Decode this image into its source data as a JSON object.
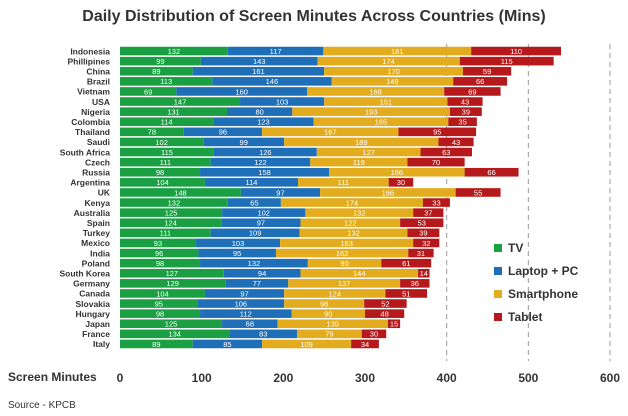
{
  "chart_data": {
    "type": "bar",
    "orientation": "horizontal",
    "stacked": true,
    "title": "Daily Distribution of Screen Minutes Across Countries (Mins)",
    "xlabel": "Screen Minutes",
    "xlim": [
      0,
      600
    ],
    "xticks": [
      "0",
      "100",
      "200",
      "300",
      "400",
      "500",
      "600"
    ],
    "grid_lines_dashed_at": [
      400,
      500,
      600
    ],
    "legend_position": "right",
    "source": "Source - KPCB",
    "categories": [
      "Indonesia",
      "Phillipines",
      "China",
      "Brazil",
      "Vietnam",
      "USA",
      "Nigeria",
      "Colombia",
      "Thailand",
      "Saudi",
      "South Africa",
      "Czech",
      "Russia",
      "Argentina",
      "UK",
      "Kenya",
      "Australia",
      "Spain",
      "Turkey",
      "Mexico",
      "India",
      "Poland",
      "South Korea",
      "Germany",
      "Canada",
      "Slovakia",
      "Hungary",
      "Japan",
      "France",
      "Italy"
    ],
    "series": [
      {
        "name": "TV",
        "color": "#1aa043",
        "values": [
          132,
          99,
          89,
          113,
          69,
          147,
          131,
          114,
          78,
          102,
          115,
          111,
          98,
          104,
          148,
          132,
          125,
          124,
          111,
          93,
          96,
          98,
          127,
          129,
          104,
          95,
          98,
          125,
          134,
          89
        ]
      },
      {
        "name": "Laptop + PC",
        "color": "#1f6fb8",
        "values": [
          117,
          143,
          161,
          146,
          160,
          103,
          80,
          123,
          96,
          99,
          126,
          122,
          158,
          114,
          97,
          65,
          102,
          97,
          109,
          103,
          95,
          132,
          94,
          77,
          97,
          106,
          112,
          68,
          83,
          85
        ]
      },
      {
        "name": "Smartphone",
        "color": "#e3ac1f",
        "values": [
          181,
          174,
          170,
          149,
          168,
          151,
          193,
          165,
          167,
          189,
          127,
          119,
          166,
          111,
          166,
          174,
          132,
          122,
          132,
          163,
          162,
          90,
          144,
          137,
          124,
          98,
          90,
          135,
          79,
          109
        ]
      },
      {
        "name": "Tablet",
        "color": "#b5191b",
        "values": [
          110,
          115,
          59,
          66,
          69,
          43,
          39,
          35,
          95,
          43,
          63,
          70,
          66,
          30,
          55,
          33,
          37,
          53,
          39,
          32,
          31,
          61,
          14,
          36,
          51,
          52,
          48,
          15,
          30,
          34
        ]
      }
    ]
  }
}
